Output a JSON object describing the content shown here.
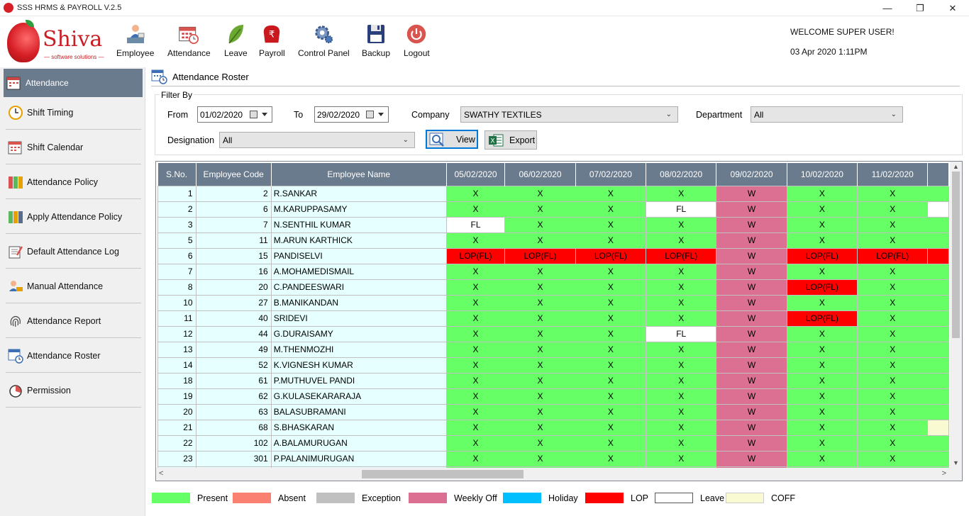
{
  "window": {
    "title": "SSS HRMS & PAYROLL V.2.5",
    "minimize": "—",
    "restore": "❐",
    "close": "✕"
  },
  "logo": {
    "brand": "Shiva",
    "tagline": "— software solutions —"
  },
  "toolbar": {
    "employee": {
      "label": "Employee",
      "icon": "employee-icon"
    },
    "attendance": {
      "label": "Attendance",
      "icon": "calendar-clock-icon"
    },
    "leave": {
      "label": "Leave",
      "icon": "leaf-icon"
    },
    "payroll": {
      "label": "Payroll",
      "icon": "rupee-icon"
    },
    "control_panel": {
      "label": "Control Panel",
      "icon": "gear-icon"
    },
    "backup": {
      "label": "Backup",
      "icon": "floppy-disk-icon"
    },
    "logout": {
      "label": "Logout",
      "icon": "power-icon"
    }
  },
  "user": {
    "welcome": "WELCOME  SUPER USER!",
    "datetime": "03 Apr 2020  1:11PM"
  },
  "sidebar": {
    "active": "Attendance",
    "items": [
      {
        "label": "Shift Timing"
      },
      {
        "label": "Shift Calendar"
      },
      {
        "label": "Attendance Policy"
      },
      {
        "label": "Apply Attendance Policy"
      },
      {
        "label": "Default Attendance Log"
      },
      {
        "label": "Manual Attendance"
      },
      {
        "label": "Attendance Report"
      },
      {
        "label": "Attendance Roster"
      },
      {
        "label": "Permission"
      }
    ]
  },
  "page": {
    "title": "Attendance Roster"
  },
  "filter": {
    "legend": "Filter By",
    "from_label": "From",
    "from_value": "01/02/2020",
    "to_label": "To",
    "to_value": "29/02/2020",
    "company_label": "Company",
    "company_value": "SWATHY TEXTILES",
    "department_label": "Department",
    "department_value": "All",
    "designation_label": "Designation",
    "designation_value": "All",
    "view_label": "View",
    "export_label": "Export"
  },
  "grid": {
    "headers": [
      "S.No.",
      "Employee Code",
      "Employee Name",
      "05/02/2020",
      "06/02/2020",
      "07/02/2020",
      "08/02/2020",
      "09/02/2020",
      "10/02/2020",
      "11/02/2020",
      ""
    ],
    "rows": [
      {
        "sno": "1",
        "code": "2",
        "name": "R.SANKAR",
        "cells": [
          [
            "X",
            "P"
          ],
          [
            "X",
            "P"
          ],
          [
            "X",
            "P"
          ],
          [
            "X",
            "P"
          ],
          [
            "W",
            "W"
          ],
          [
            "X",
            "P"
          ],
          [
            "X",
            "P"
          ],
          [
            "",
            "P"
          ]
        ]
      },
      {
        "sno": "2",
        "code": "6",
        "name": "M.KARUPPASAMY",
        "cells": [
          [
            "X",
            "P"
          ],
          [
            "X",
            "P"
          ],
          [
            "X",
            "P"
          ],
          [
            "FL",
            "L"
          ],
          [
            "W",
            "W"
          ],
          [
            "X",
            "P"
          ],
          [
            "X",
            "P"
          ],
          [
            "",
            "L"
          ]
        ]
      },
      {
        "sno": "3",
        "code": "7",
        "name": "N.SENTHIL KUMAR",
        "cells": [
          [
            "FL",
            "L"
          ],
          [
            "X",
            "P"
          ],
          [
            "X",
            "P"
          ],
          [
            "X",
            "P"
          ],
          [
            "W",
            "W"
          ],
          [
            "X",
            "P"
          ],
          [
            "X",
            "P"
          ],
          [
            "",
            "P"
          ]
        ]
      },
      {
        "sno": "5",
        "code": "11",
        "name": "M.ARUN KARTHICK",
        "cells": [
          [
            "X",
            "P"
          ],
          [
            "X",
            "P"
          ],
          [
            "X",
            "P"
          ],
          [
            "X",
            "P"
          ],
          [
            "W",
            "W"
          ],
          [
            "X",
            "P"
          ],
          [
            "X",
            "P"
          ],
          [
            "",
            "P"
          ]
        ]
      },
      {
        "sno": "6",
        "code": "15",
        "name": "PANDISELVI",
        "cells": [
          [
            "LOP(FL)",
            "LOP"
          ],
          [
            "LOP(FL)",
            "LOP"
          ],
          [
            "LOP(FL)",
            "LOP"
          ],
          [
            "LOP(FL)",
            "LOP"
          ],
          [
            "W",
            "W"
          ],
          [
            "LOP(FL)",
            "LOP"
          ],
          [
            "LOP(FL)",
            "LOP"
          ],
          [
            "",
            "LOP"
          ]
        ]
      },
      {
        "sno": "7",
        "code": "16",
        "name": "A.MOHAMEDISMAIL",
        "cells": [
          [
            "X",
            "P"
          ],
          [
            "X",
            "P"
          ],
          [
            "X",
            "P"
          ],
          [
            "X",
            "P"
          ],
          [
            "W",
            "W"
          ],
          [
            "X",
            "P"
          ],
          [
            "X",
            "P"
          ],
          [
            "",
            "P"
          ]
        ]
      },
      {
        "sno": "8",
        "code": "20",
        "name": "C.PANDEESWARI",
        "cells": [
          [
            "X",
            "P"
          ],
          [
            "X",
            "P"
          ],
          [
            "X",
            "P"
          ],
          [
            "X",
            "P"
          ],
          [
            "W",
            "W"
          ],
          [
            "LOP(FL)",
            "LOP"
          ],
          [
            "X",
            "P"
          ],
          [
            "",
            "P"
          ]
        ]
      },
      {
        "sno": "10",
        "code": "27",
        "name": "B.MANIKANDAN",
        "cells": [
          [
            "X",
            "P"
          ],
          [
            "X",
            "P"
          ],
          [
            "X",
            "P"
          ],
          [
            "X",
            "P"
          ],
          [
            "W",
            "W"
          ],
          [
            "X",
            "P"
          ],
          [
            "X",
            "P"
          ],
          [
            "",
            "P"
          ]
        ]
      },
      {
        "sno": "11",
        "code": "40",
        "name": "SRIDEVI",
        "cells": [
          [
            "X",
            "P"
          ],
          [
            "X",
            "P"
          ],
          [
            "X",
            "P"
          ],
          [
            "X",
            "P"
          ],
          [
            "W",
            "W"
          ],
          [
            "LOP(FL)",
            "LOP"
          ],
          [
            "X",
            "P"
          ],
          [
            "",
            "P"
          ]
        ]
      },
      {
        "sno": "12",
        "code": "44",
        "name": "G.DURAISAMY",
        "cells": [
          [
            "X",
            "P"
          ],
          [
            "X",
            "P"
          ],
          [
            "X",
            "P"
          ],
          [
            "FL",
            "L"
          ],
          [
            "W",
            "W"
          ],
          [
            "X",
            "P"
          ],
          [
            "X",
            "P"
          ],
          [
            "",
            "P"
          ]
        ]
      },
      {
        "sno": "13",
        "code": "49",
        "name": "M.THENMOZHI",
        "cells": [
          [
            "X",
            "P"
          ],
          [
            "X",
            "P"
          ],
          [
            "X",
            "P"
          ],
          [
            "X",
            "P"
          ],
          [
            "W",
            "W"
          ],
          [
            "X",
            "P"
          ],
          [
            "X",
            "P"
          ],
          [
            "",
            "P"
          ]
        ]
      },
      {
        "sno": "14",
        "code": "52",
        "name": "K.VIGNESH KUMAR",
        "cells": [
          [
            "X",
            "P"
          ],
          [
            "X",
            "P"
          ],
          [
            "X",
            "P"
          ],
          [
            "X",
            "P"
          ],
          [
            "W",
            "W"
          ],
          [
            "X",
            "P"
          ],
          [
            "X",
            "P"
          ],
          [
            "",
            "P"
          ]
        ]
      },
      {
        "sno": "18",
        "code": "61",
        "name": "P.MUTHUVEL PANDI",
        "cells": [
          [
            "X",
            "P"
          ],
          [
            "X",
            "P"
          ],
          [
            "X",
            "P"
          ],
          [
            "X",
            "P"
          ],
          [
            "W",
            "W"
          ],
          [
            "X",
            "P"
          ],
          [
            "X",
            "P"
          ],
          [
            "",
            "P"
          ]
        ]
      },
      {
        "sno": "19",
        "code": "62",
        "name": "G.KULASEKARARAJA",
        "cells": [
          [
            "X",
            "P"
          ],
          [
            "X",
            "P"
          ],
          [
            "X",
            "P"
          ],
          [
            "X",
            "P"
          ],
          [
            "W",
            "W"
          ],
          [
            "X",
            "P"
          ],
          [
            "X",
            "P"
          ],
          [
            "",
            "P"
          ]
        ]
      },
      {
        "sno": "20",
        "code": "63",
        "name": "BALASUBRAMANI",
        "cells": [
          [
            "X",
            "P"
          ],
          [
            "X",
            "P"
          ],
          [
            "X",
            "P"
          ],
          [
            "X",
            "P"
          ],
          [
            "W",
            "W"
          ],
          [
            "X",
            "P"
          ],
          [
            "X",
            "P"
          ],
          [
            "",
            "P"
          ]
        ]
      },
      {
        "sno": "21",
        "code": "68",
        "name": "S.BHASKARAN",
        "cells": [
          [
            "X",
            "P"
          ],
          [
            "X",
            "P"
          ],
          [
            "X",
            "P"
          ],
          [
            "X",
            "P"
          ],
          [
            "W",
            "W"
          ],
          [
            "X",
            "P"
          ],
          [
            "X",
            "P"
          ],
          [
            "",
            "C"
          ]
        ]
      },
      {
        "sno": "22",
        "code": "102",
        "name": "A.BALAMURUGAN",
        "cells": [
          [
            "X",
            "P"
          ],
          [
            "X",
            "P"
          ],
          [
            "X",
            "P"
          ],
          [
            "X",
            "P"
          ],
          [
            "W",
            "W"
          ],
          [
            "X",
            "P"
          ],
          [
            "X",
            "P"
          ],
          [
            "",
            "P"
          ]
        ]
      },
      {
        "sno": "23",
        "code": "301",
        "name": "P.PALANIMURUGAN",
        "cells": [
          [
            "X",
            "P"
          ],
          [
            "X",
            "P"
          ],
          [
            "X",
            "P"
          ],
          [
            "X",
            "P"
          ],
          [
            "W",
            "W"
          ],
          [
            "X",
            "P"
          ],
          [
            "X",
            "P"
          ],
          [
            "",
            "P"
          ]
        ]
      },
      {
        "sno": "",
        "code": "",
        "name": "",
        "cells": [
          [
            "",
            "P"
          ],
          [
            "",
            "P"
          ],
          [
            "",
            "P"
          ],
          [
            "",
            "P"
          ],
          [
            "",
            "W"
          ],
          [
            "",
            "P"
          ],
          [
            "",
            "P"
          ],
          [
            "",
            "P"
          ]
        ]
      }
    ]
  },
  "legend": [
    {
      "label": "Present",
      "color": "#66ff66"
    },
    {
      "label": "Absent",
      "color": "#fa8072"
    },
    {
      "label": "Exception",
      "color": "#c0c0c0"
    },
    {
      "label": "Weekly Off",
      "color": "#db7093"
    },
    {
      "label": "Holiday",
      "color": "#00bfff"
    },
    {
      "label": "LOP",
      "color": "#ff0000"
    },
    {
      "label": "Leave",
      "color": "#ffffff"
    },
    {
      "label": "COFF",
      "color": "#fafad2"
    }
  ]
}
